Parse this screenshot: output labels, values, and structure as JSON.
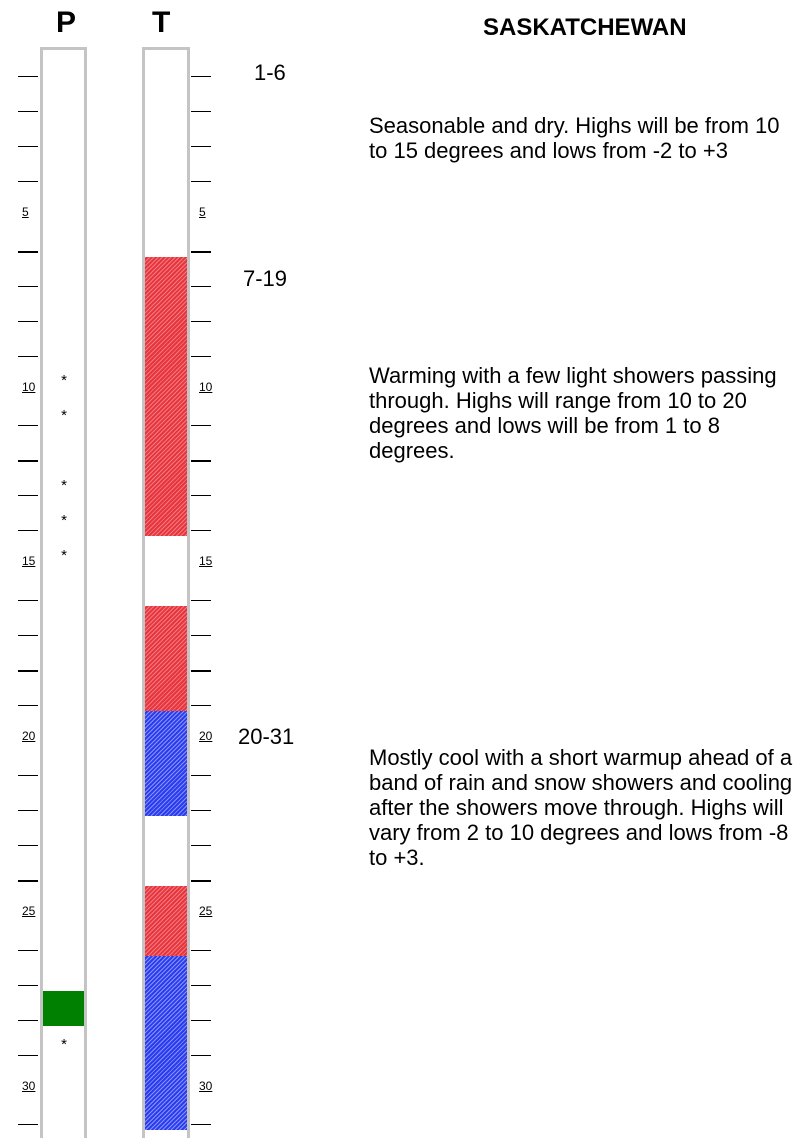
{
  "region": "SASKATCHEWAN",
  "columns": {
    "precip_label": "P",
    "temp_label": "T"
  },
  "chart_data": {
    "type": "table",
    "title": "SASKATCHEWAN",
    "days": [
      1,
      31
    ],
    "day_labels": [
      "5",
      "10",
      "15",
      "20",
      "25",
      "30"
    ],
    "precipitation": {
      "label": "P",
      "showers_days": [
        10,
        11,
        13,
        14,
        15,
        29
      ],
      "wet_periods": [
        {
          "from": 28,
          "to": 28
        }
      ]
    },
    "temperature": {
      "label": "T",
      "periods": [
        {
          "from": 7,
          "to": 14,
          "anomaly": "warm"
        },
        {
          "from": 17,
          "to": 19,
          "anomaly": "warm"
        },
        {
          "from": 20,
          "to": 22,
          "anomaly": "cool"
        },
        {
          "from": 25,
          "to": 26,
          "anomaly": "warm"
        },
        {
          "from": 27,
          "to": 31,
          "anomaly": "cool"
        }
      ]
    },
    "colors": {
      "warm": "#e8343c",
      "cool": "#2a3cf0",
      "wet": "#008000",
      "border": "#c4c4c4"
    }
  },
  "forecasts": [
    {
      "period": "1-6",
      "text": "Seasonable and dry. Highs will be from 10 to 15 degrees and lows from -2 to +3"
    },
    {
      "period": "7-19",
      "text": "Warming with a few light showers passing through. Highs will range from 10 to 20 degrees and lows will be from 1 to 8 degrees."
    },
    {
      "period": "20-31",
      "text": "Mostly cool with a short warmup ahead of a band of rain and snow showers and cooling after the showers move through. Highs will vary from 2 to 10 degrees and lows from -8 to +3."
    }
  ]
}
